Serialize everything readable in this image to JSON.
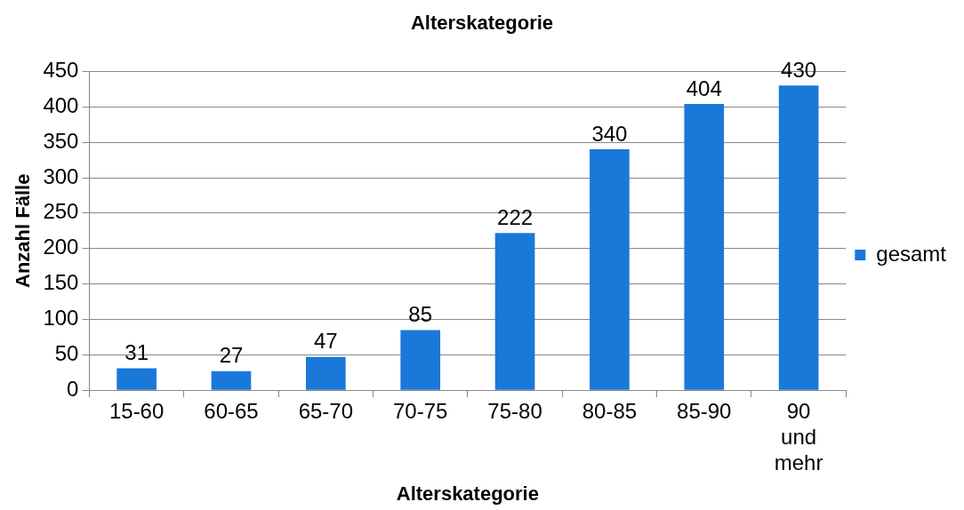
{
  "chart_data": {
    "type": "bar",
    "title": "Alterskategorie",
    "xlabel": "Alterskategorie",
    "ylabel": "Anzahl Fälle",
    "categories": [
      "15-60",
      "60-65",
      "65-70",
      "70-75",
      "75-80",
      "80-85",
      "85-90",
      "90 und mehr"
    ],
    "series": [
      {
        "name": "gesamt",
        "color": "#1a78d8",
        "values": [
          31,
          27,
          47,
          85,
          222,
          340,
          404,
          430
        ]
      }
    ],
    "ylim": [
      0,
      450
    ],
    "yticks": [
      0,
      50,
      100,
      150,
      200,
      250,
      300,
      350,
      400,
      450
    ],
    "grid": "y",
    "legend": "right",
    "data_labels": true
  }
}
